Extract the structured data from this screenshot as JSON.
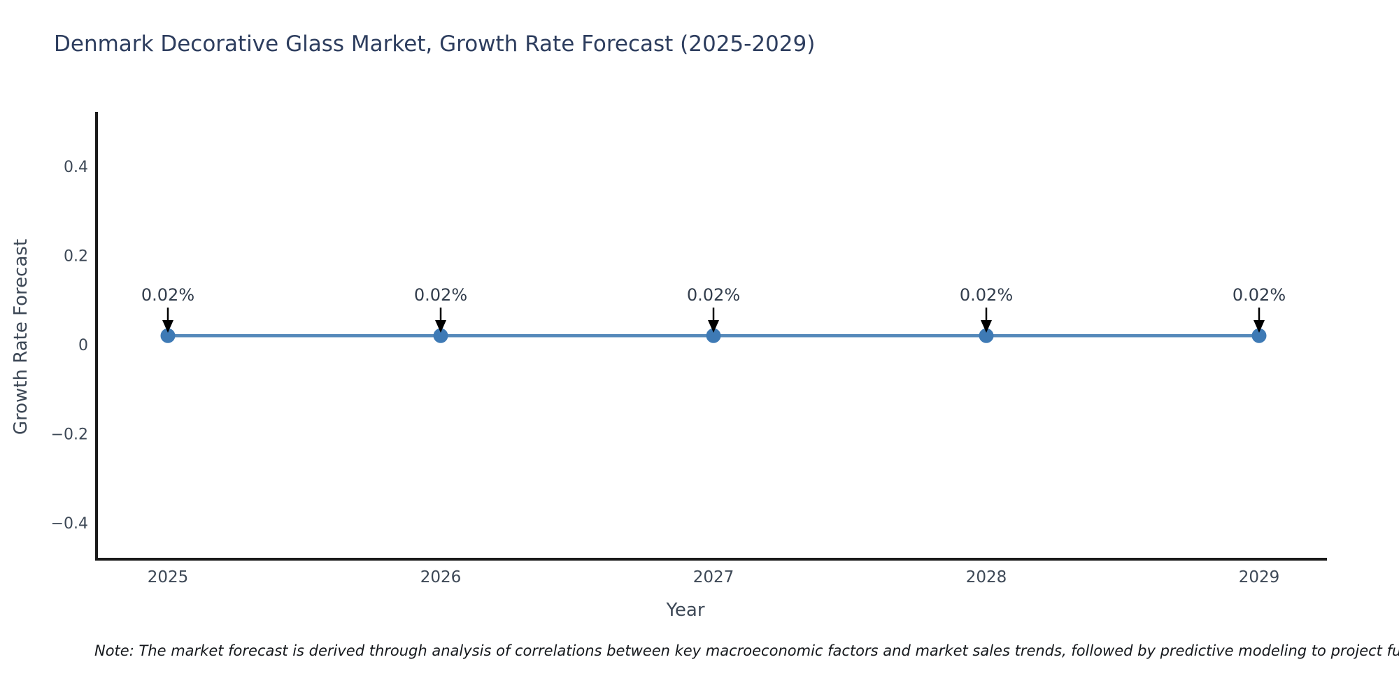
{
  "note": {
    "text": "Note: The market forecast is derived through analysis of correlations between key macroeconomic factors and market sales trends, followed by predictive modeling to project future sales"
  },
  "chart_data": {
    "type": "line",
    "title": "Denmark Decorative Glass Market, Growth Rate Forecast (2025-2029)",
    "xlabel": "Year",
    "ylabel": "Growth Rate Forecast",
    "x": [
      2025,
      2026,
      2027,
      2028,
      2029
    ],
    "values": [
      0.02,
      0.02,
      0.02,
      0.02,
      0.02
    ],
    "point_labels": [
      "0.02%",
      "0.02%",
      "0.02%",
      "0.02%",
      "0.02%"
    ],
    "xtick_labels": [
      "2025",
      "2026",
      "2027",
      "2028",
      "2029"
    ],
    "yticks": [
      0.4,
      0.2,
      0,
      -0.2,
      -0.4
    ],
    "ytick_labels": [
      "0.4",
      "0.2",
      "0",
      "−0.2",
      "−0.4"
    ],
    "ylim": [
      -0.48,
      0.52
    ],
    "grid": false,
    "legend": false,
    "annotation_style": "label-above-with-down-arrow"
  },
  "colors": {
    "background": "#ffffff",
    "title": "#2d3d5e",
    "axis_title": "#3d4856",
    "tick_label": "#3d4856",
    "annotation_label": "#323d4c",
    "annotation_arrow": "#000000",
    "line": "#5589ba",
    "marker": "#3e7ab5",
    "spine": "#1a1a1a",
    "note_text": "#15181c"
  }
}
